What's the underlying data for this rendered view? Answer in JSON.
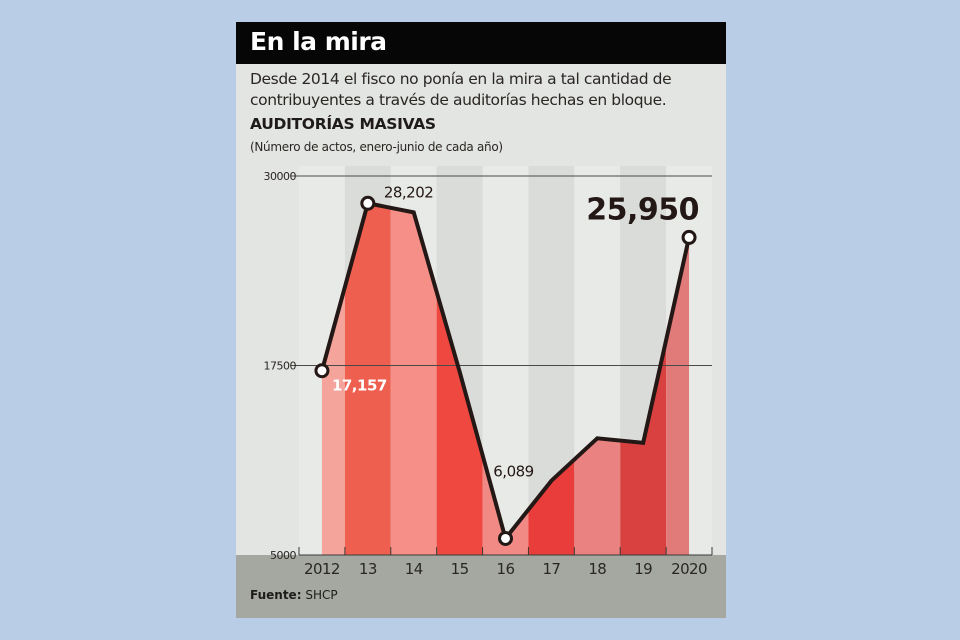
{
  "header": {
    "title": "En la mira"
  },
  "subtitle": "Desde 2014 el fisco no ponía en la mira a tal cantidad de contribuyentes a través de auditorías hechas en bloque.",
  "source": {
    "label": "Fuente:",
    "value": "SHCP"
  },
  "colors": {
    "page_background": "#b9cde6",
    "title_bar": "#060606",
    "line": "#231815",
    "footer_band": "#a4a8a0"
  },
  "chart_data": {
    "type": "area",
    "title": "AUDITORÍAS MASIVAS",
    "subtitle": "(Número de actos, enero-junio de cada año)",
    "categories": [
      "2012",
      "13",
      "14",
      "15",
      "16",
      "17",
      "18",
      "19",
      "2020"
    ],
    "values": [
      17157,
      28202,
      27600,
      17100,
      6089,
      9900,
      12700,
      12400,
      25950
    ],
    "data_labels": [
      {
        "category": "2012",
        "text": "17,157"
      },
      {
        "category": "13",
        "text": "28,202"
      },
      {
        "category": "16",
        "text": "6,089"
      },
      {
        "category": "2020",
        "text": "25,950"
      }
    ],
    "yticks": [
      5000,
      17500,
      30000
    ],
    "ytick_labels": [
      "5000",
      "17500",
      "30000"
    ],
    "ylim": [
      5000,
      30000
    ],
    "grid": "horizontal lines at 17500 and 30000",
    "fill_colors": [
      "#f5a49b",
      "#ef5f50",
      "#f58f87",
      "#ee4840",
      "#f18a85",
      "#e83d3b",
      "#e98281",
      "#d8413f",
      "#e07b79"
    ]
  }
}
